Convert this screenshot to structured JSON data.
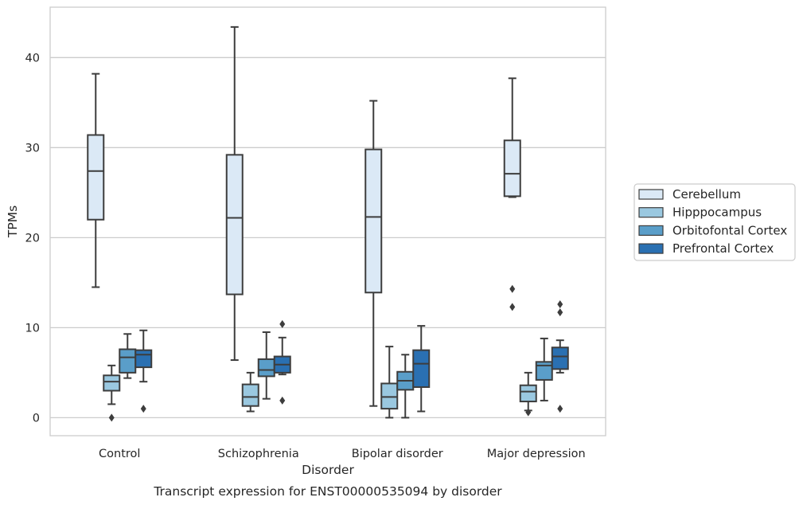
{
  "chart_data": {
    "type": "box",
    "title": "Transcript expression for ENST00000535094 by disorder",
    "xlabel": "Disorder",
    "ylabel": "TPMs",
    "ylim": [
      -2,
      45.6
    ],
    "yticks": [
      0,
      10,
      20,
      30,
      40
    ],
    "grid": "horizontal",
    "legend_position": "right",
    "categories": [
      "Control",
      "Schizophrenia",
      "Bipolar disorder",
      "Major depression"
    ],
    "series": [
      {
        "name": "Cerebellum",
        "color": "#dbe9f6",
        "boxes": [
          {
            "whislo": 14.5,
            "q1": 22.0,
            "med": 27.4,
            "q3": 31.4,
            "whishi": 38.2,
            "fliers": []
          },
          {
            "whislo": 6.4,
            "q1": 13.7,
            "med": 22.2,
            "q3": 29.2,
            "whishi": 43.4,
            "fliers": []
          },
          {
            "whislo": 1.3,
            "q1": 13.9,
            "med": 22.3,
            "q3": 29.8,
            "whishi": 35.2,
            "fliers": []
          },
          {
            "whislo": 24.5,
            "q1": 24.6,
            "med": 27.1,
            "q3": 30.8,
            "whishi": 37.7,
            "fliers": [
              14.3,
              12.3
            ]
          }
        ]
      },
      {
        "name": "Hipppocampus",
        "color": "#9ac8e0",
        "boxes": [
          {
            "whislo": 1.5,
            "q1": 3.0,
            "med": 4.0,
            "q3": 4.7,
            "whishi": 5.8,
            "fliers": [
              0.0
            ]
          },
          {
            "whislo": 0.7,
            "q1": 1.3,
            "med": 2.3,
            "q3": 3.7,
            "whishi": 5.0,
            "fliers": []
          },
          {
            "whislo": 0.0,
            "q1": 1.0,
            "med": 2.3,
            "q3": 3.8,
            "whishi": 7.9,
            "fliers": []
          },
          {
            "whislo": 0.8,
            "q1": 1.8,
            "med": 2.9,
            "q3": 3.6,
            "whishi": 5.0,
            "fliers": [
              0.6
            ]
          }
        ]
      },
      {
        "name": "Orbitofontal Cortex",
        "color": "#5a9ec9",
        "boxes": [
          {
            "whislo": 4.4,
            "q1": 5.0,
            "med": 6.7,
            "q3": 7.6,
            "whishi": 9.3,
            "fliers": []
          },
          {
            "whislo": 2.1,
            "q1": 4.6,
            "med": 5.3,
            "q3": 6.5,
            "whishi": 9.5,
            "fliers": []
          },
          {
            "whislo": 0.0,
            "q1": 3.1,
            "med": 4.1,
            "q3": 5.1,
            "whishi": 7.0,
            "fliers": []
          },
          {
            "whislo": 1.9,
            "q1": 4.2,
            "med": 5.8,
            "q3": 6.2,
            "whishi": 8.8,
            "fliers": []
          }
        ]
      },
      {
        "name": "Prefrontal Cortex",
        "color": "#2a70b2",
        "boxes": [
          {
            "whislo": 4.0,
            "q1": 5.6,
            "med": 7.0,
            "q3": 7.5,
            "whishi": 9.7,
            "fliers": [
              1.0
            ]
          },
          {
            "whislo": 4.8,
            "q1": 5.0,
            "med": 5.9,
            "q3": 6.8,
            "whishi": 8.9,
            "fliers": [
              10.4,
              1.9
            ]
          },
          {
            "whislo": 0.7,
            "q1": 3.4,
            "med": 6.0,
            "q3": 7.5,
            "whishi": 10.2,
            "fliers": []
          },
          {
            "whislo": 5.0,
            "q1": 5.4,
            "med": 6.8,
            "q3": 7.8,
            "whishi": 8.6,
            "fliers": [
              12.6,
              11.7,
              1.0
            ]
          }
        ]
      }
    ]
  }
}
